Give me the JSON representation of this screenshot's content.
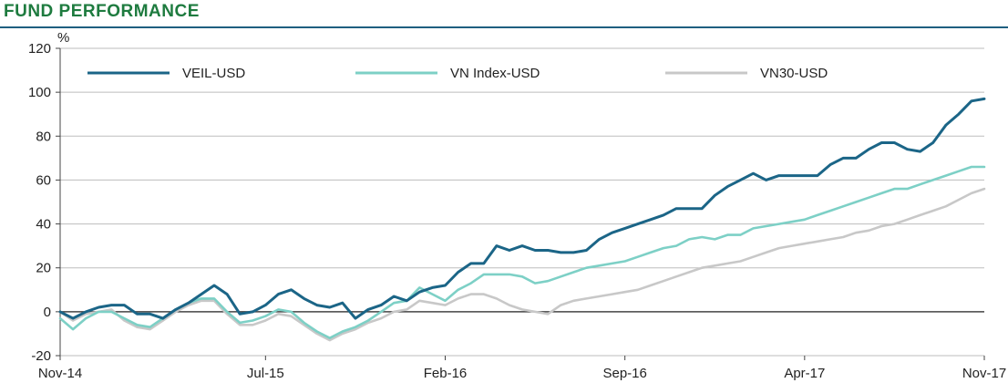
{
  "header": {
    "title": "FUND PERFORMANCE"
  },
  "chart_data": {
    "type": "line",
    "title": "FUND PERFORMANCE",
    "ylabel": "%",
    "xlabel": "",
    "ylim": [
      -20,
      120
    ],
    "yticks": [
      -20,
      0,
      20,
      40,
      60,
      80,
      100,
      120
    ],
    "xlim": [
      0,
      36
    ],
    "xticks": [
      {
        "label": "Nov-14",
        "x": 0
      },
      {
        "label": "Jul-15",
        "x": 8
      },
      {
        "label": "Feb-16",
        "x": 15
      },
      {
        "label": "Sep-16",
        "x": 22
      },
      {
        "label": "Apr-17",
        "x": 29
      },
      {
        "label": "Nov-17",
        "x": 36
      }
    ],
    "grid": "horizontal",
    "legend_position": "top",
    "series": [
      {
        "name": "VEIL-USD",
        "color": "#1b6587",
        "x": [
          0,
          0.5,
          1,
          1.5,
          2,
          2.5,
          3,
          3.5,
          4,
          4.5,
          5,
          5.5,
          6,
          6.5,
          7,
          7.5,
          8,
          8.5,
          9,
          9.5,
          10,
          10.5,
          11,
          11.5,
          12,
          12.5,
          13,
          13.5,
          14,
          14.5,
          15,
          15.5,
          16,
          16.5,
          17,
          17.5,
          18,
          18.5,
          19,
          19.5,
          20,
          20.5,
          21,
          21.5,
          22,
          22.5,
          23,
          23.5,
          24,
          24.5,
          25,
          25.5,
          26,
          26.5,
          27,
          27.5,
          28,
          28.5,
          29,
          29.5,
          30,
          30.5,
          31,
          31.5,
          32,
          32.5,
          33,
          33.5,
          34,
          34.5,
          35,
          35.5,
          36
        ],
        "values": [
          0,
          -3,
          0,
          2,
          3,
          3,
          -1,
          -1,
          -3,
          1,
          4,
          8,
          12,
          8,
          -1,
          0,
          3,
          8,
          10,
          6,
          3,
          2,
          4,
          -3,
          1,
          3,
          7,
          5,
          9,
          11,
          12,
          18,
          22,
          22,
          30,
          28,
          30,
          28,
          28,
          27,
          27,
          28,
          33,
          36,
          38,
          40,
          42,
          44,
          47,
          47,
          47,
          53,
          57,
          60,
          63,
          60,
          62,
          62,
          62,
          62,
          67,
          70,
          70,
          74,
          77,
          77,
          74,
          73,
          77,
          85,
          90,
          96,
          97
        ]
      },
      {
        "name": "VN Index-USD",
        "color": "#7dd0c6",
        "x": [
          0,
          0.5,
          1,
          1.5,
          2,
          2.5,
          3,
          3.5,
          4,
          4.5,
          5,
          5.5,
          6,
          6.5,
          7,
          7.5,
          8,
          8.5,
          9,
          9.5,
          10,
          10.5,
          11,
          11.5,
          12,
          12.5,
          13,
          13.5,
          14,
          14.5,
          15,
          15.5,
          16,
          16.5,
          17,
          17.5,
          18,
          18.5,
          19,
          19.5,
          20,
          20.5,
          21,
          21.5,
          22,
          22.5,
          23,
          23.5,
          24,
          24.5,
          25,
          25.5,
          26,
          26.5,
          27,
          27.5,
          28,
          28.5,
          29,
          29.5,
          30,
          30.5,
          31,
          31.5,
          32,
          32.5,
          33,
          33.5,
          34,
          34.5,
          35,
          35.5,
          36
        ],
        "values": [
          -3,
          -8,
          -3,
          0,
          0,
          -3,
          -6,
          -7,
          -3,
          1,
          4,
          6,
          6,
          0,
          -5,
          -4,
          -2,
          1,
          0,
          -5,
          -9,
          -12,
          -9,
          -7,
          -4,
          0,
          4,
          5,
          11,
          8,
          5,
          10,
          13,
          17,
          17,
          17,
          16,
          13,
          14,
          16,
          18,
          20,
          21,
          22,
          23,
          25,
          27,
          29,
          30,
          33,
          34,
          33,
          35,
          35,
          38,
          39,
          40,
          41,
          42,
          44,
          46,
          48,
          50,
          52,
          54,
          56,
          56,
          58,
          60,
          62,
          64,
          66,
          66
        ]
      },
      {
        "name": "VN30-USD",
        "color": "#c8c8c8",
        "x": [
          0,
          0.5,
          1,
          1.5,
          2,
          2.5,
          3,
          3.5,
          4,
          4.5,
          5,
          5.5,
          6,
          6.5,
          7,
          7.5,
          8,
          8.5,
          9,
          9.5,
          10,
          10.5,
          11,
          11.5,
          12,
          12.5,
          13,
          13.5,
          14,
          14.5,
          15,
          15.5,
          16,
          16.5,
          17,
          17.5,
          18,
          18.5,
          19,
          19.5,
          20,
          20.5,
          21,
          21.5,
          22,
          22.5,
          23,
          23.5,
          24,
          24.5,
          25,
          25.5,
          26,
          26.5,
          27,
          27.5,
          28,
          28.5,
          29,
          29.5,
          30,
          30.5,
          31,
          31.5,
          32,
          32.5,
          33,
          33.5,
          34,
          34.5,
          35,
          35.5,
          36
        ],
        "values": [
          0,
          -4,
          -1,
          0,
          1,
          -4,
          -7,
          -8,
          -4,
          0,
          3,
          5,
          5,
          -1,
          -6,
          -6,
          -4,
          -1,
          -2,
          -6,
          -10,
          -13,
          -10,
          -8,
          -5,
          -3,
          0,
          1,
          5,
          4,
          3,
          6,
          8,
          8,
          6,
          3,
          1,
          0,
          -1,
          3,
          5,
          6,
          7,
          8,
          9,
          10,
          12,
          14,
          16,
          18,
          20,
          21,
          22,
          23,
          25,
          27,
          29,
          30,
          31,
          32,
          33,
          34,
          36,
          37,
          39,
          40,
          42,
          44,
          46,
          48,
          51,
          54,
          56
        ]
      }
    ]
  }
}
